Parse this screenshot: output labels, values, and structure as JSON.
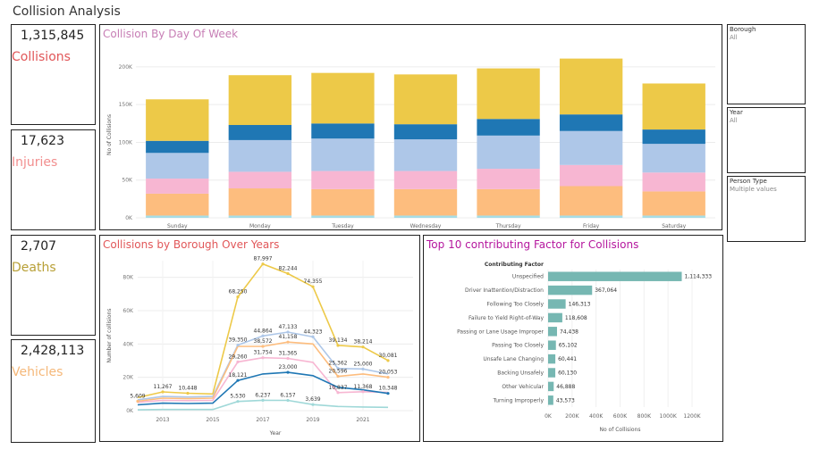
{
  "dashboard": {
    "title": "Collision Analysis"
  },
  "kpis": [
    {
      "value": "1,315,845",
      "label": "Collisions",
      "color": "#e15759"
    },
    {
      "value": "17,623",
      "label": "Injuries",
      "color": "#f28e8e"
    },
    {
      "value": "2,707",
      "label": "Deaths",
      "color": "#b8a037"
    },
    {
      "value": "2,428,113",
      "label": "Vehicles",
      "color": "#f5b87a"
    }
  ],
  "filters": [
    {
      "label": "Borough",
      "value": "All"
    },
    {
      "label": "Year",
      "value": "All"
    },
    {
      "label": "Person Type",
      "value": "Multiple values"
    }
  ],
  "colors": {
    "title_pink": "#c77eb5",
    "title_red": "#e15759",
    "title_magenta": "#b5179e",
    "bar_teal": "#76b7b2"
  },
  "chart_data": [
    {
      "type": "bar",
      "title": "Collision By Day Of Week",
      "ylabel": "No of Collisions",
      "xlabel": "",
      "ylim": [
        0,
        220000
      ],
      "yticks": [
        0,
        50000,
        100000,
        150000,
        200000
      ],
      "ytick_labels": [
        "0K",
        "50K",
        "100K",
        "150K",
        "200K"
      ],
      "categories": [
        "Sunday",
        "Monday",
        "Tuesday",
        "Wednesday",
        "Thursday",
        "Friday",
        "Saturday"
      ],
      "stacked": true,
      "series": [
        {
          "color": "#a6dde6",
          "values": [
            3000,
            3000,
            3000,
            3000,
            3000,
            3000,
            3000
          ]
        },
        {
          "color": "#fdbd7e",
          "values": [
            29000,
            36000,
            35000,
            35000,
            35000,
            39000,
            32000
          ]
        },
        {
          "color": "#f7b6d2",
          "values": [
            20000,
            22000,
            24000,
            24000,
            27000,
            28000,
            25000
          ]
        },
        {
          "color": "#aec7e8",
          "values": [
            34000,
            42000,
            43000,
            42000,
            44000,
            45000,
            38000
          ]
        },
        {
          "color": "#1f77b4",
          "values": [
            16000,
            20000,
            20000,
            20000,
            22000,
            22000,
            19000
          ]
        },
        {
          "color": "#edc948",
          "values": [
            55000,
            66000,
            67000,
            66000,
            67000,
            74000,
            61000
          ]
        }
      ]
    },
    {
      "type": "line",
      "title": "Collisions by Borough Over Years",
      "xlabel": "Year",
      "ylabel": "Number of collisions",
      "xlim": [
        2012,
        2023
      ],
      "ylim": [
        0,
        90000
      ],
      "xticks": [
        2013,
        2015,
        2017,
        2019,
        2021
      ],
      "yticks": [
        0,
        20000,
        40000,
        60000,
        80000
      ],
      "ytick_labels": [
        "0K",
        "20K",
        "40K",
        "60K",
        "80K"
      ],
      "x": [
        2012,
        2013,
        2014,
        2015,
        2016,
        2017,
        2018,
        2019,
        2020,
        2021,
        2022
      ],
      "series": [
        {
          "color": "#edc948",
          "values": [
            7800,
            11267,
            10448,
            10000,
            68250,
            87997,
            82244,
            74355,
            39134,
            38214,
            30081
          ]
        },
        {
          "color": "#aec7e8",
          "values": [
            6500,
            8500,
            8200,
            8500,
            39350,
            44864,
            47133,
            44323,
            25362,
            25000,
            22000
          ]
        },
        {
          "color": "#fdbd7e",
          "values": [
            5609,
            7500,
            7200,
            7500,
            38572,
            38572,
            41158,
            40000,
            20596,
            22000,
            20053
          ]
        },
        {
          "color": "#f7b6d2",
          "values": [
            5000,
            6200,
            6000,
            6200,
            29260,
            31754,
            31365,
            29000,
            10837,
            11368,
            11000
          ]
        },
        {
          "color": "#1f77b4",
          "values": [
            3500,
            4500,
            4300,
            4500,
            18121,
            22000,
            23000,
            21000,
            14000,
            12500,
            10348
          ]
        },
        {
          "color": "#9fd8d8",
          "values": [
            500,
            700,
            700,
            700,
            5530,
            6237,
            6157,
            3639,
            2500,
            2200,
            2000
          ]
        }
      ],
      "labels": [
        {
          "x": 2012,
          "y": 5609,
          "text": "5,609",
          "series": 2
        },
        {
          "x": 2013,
          "y": 11267,
          "text": "11,267",
          "series": 0
        },
        {
          "x": 2014,
          "y": 10448,
          "text": "10,448",
          "series": 0
        },
        {
          "x": 2016,
          "y": 68250,
          "text": "68,250",
          "series": 0
        },
        {
          "x": 2017,
          "y": 87997,
          "text": "87,997",
          "series": 0
        },
        {
          "x": 2018,
          "y": 82244,
          "text": "82,244",
          "series": 0
        },
        {
          "x": 2019,
          "y": 74355,
          "text": "74,355",
          "series": 0
        },
        {
          "x": 2020,
          "y": 39134,
          "text": "39,134",
          "series": 0
        },
        {
          "x": 2021,
          "y": 38214,
          "text": "38,214",
          "series": 0
        },
        {
          "x": 2022,
          "y": 30081,
          "text": "30,081",
          "series": 0
        },
        {
          "x": 2016,
          "y": 39350,
          "text": "39,350",
          "series": 1
        },
        {
          "x": 2017,
          "y": 44864,
          "text": "44,864",
          "series": 1
        },
        {
          "x": 2018,
          "y": 47133,
          "text": "47,133",
          "series": 1
        },
        {
          "x": 2019,
          "y": 44323,
          "text": "44,323",
          "series": 1
        },
        {
          "x": 2020,
          "y": 25362,
          "text": "25,362",
          "series": 1
        },
        {
          "x": 2021,
          "y": 25000,
          "text": "25,000",
          "series": 1
        },
        {
          "x": 2017,
          "y": 38572,
          "text": "38,572",
          "series": 2
        },
        {
          "x": 2018,
          "y": 41158,
          "text": "41,158",
          "series": 2
        },
        {
          "x": 2020,
          "y": 20596,
          "text": "20,596",
          "series": 2
        },
        {
          "x": 2022,
          "y": 20053,
          "text": "20,053",
          "series": 2
        },
        {
          "x": 2016,
          "y": 29260,
          "text": "29,260",
          "series": 3
        },
        {
          "x": 2017,
          "y": 31754,
          "text": "31,754",
          "series": 3
        },
        {
          "x": 2018,
          "y": 31365,
          "text": "31,365",
          "series": 3
        },
        {
          "x": 2020,
          "y": 10837,
          "text": "10,837",
          "series": 3
        },
        {
          "x": 2021,
          "y": 11368,
          "text": "11,368",
          "series": 3
        },
        {
          "x": 2016,
          "y": 18121,
          "text": "18,121",
          "series": 4
        },
        {
          "x": 2018,
          "y": 23000,
          "text": "23,000",
          "series": 4
        },
        {
          "x": 2022,
          "y": 10348,
          "text": "10,348",
          "series": 4
        },
        {
          "x": 2016,
          "y": 5530,
          "text": "5,530",
          "series": 5
        },
        {
          "x": 2017,
          "y": 6237,
          "text": "6,237",
          "series": 5
        },
        {
          "x": 2018,
          "y": 6157,
          "text": "6,157",
          "series": 5
        },
        {
          "x": 2019,
          "y": 3639,
          "text": "3,639",
          "series": 5
        }
      ]
    },
    {
      "type": "bar",
      "orientation": "horizontal",
      "title": "Top 10 contributing Factor for Collisions",
      "category_header": "Contributing Factor",
      "xlabel": "No of Collisions",
      "ylabel": "",
      "xlim": [
        0,
        1200000
      ],
      "xticks": [
        0,
        200000,
        400000,
        600000,
        800000,
        1000000,
        1200000
      ],
      "xtick_labels": [
        "0K",
        "200K",
        "400K",
        "600K",
        "800K",
        "1000K",
        "1200K"
      ],
      "categories": [
        "Unspecified",
        "Driver Inattention/Distraction",
        "Following Too Closely",
        "Failure to Yield Right-of-Way",
        "Passing or Lane Usage Improper",
        "Passing Too Closely",
        "Unsafe Lane Changing",
        "Backing Unsafely",
        "Other Vehicular",
        "Turning Improperly"
      ],
      "values": [
        1114333,
        367064,
        146313,
        118608,
        74438,
        65102,
        60441,
        60130,
        46888,
        43573
      ],
      "value_labels": [
        "1,114,333",
        "367,064",
        "146,313",
        "118,608",
        "74,438",
        "65,102",
        "60,441",
        "60,130",
        "46,888",
        "43,573"
      ]
    }
  ]
}
